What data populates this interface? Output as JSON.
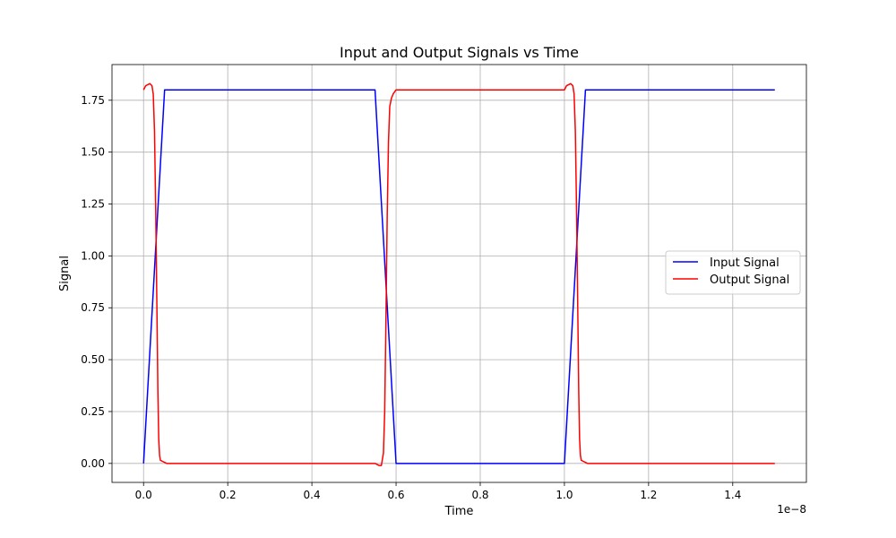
{
  "chart_data": {
    "type": "line",
    "title": "Input and Output Signals vs Time",
    "xlabel": "Time",
    "ylabel": "Signal",
    "x_offset_label": "1e−8",
    "xlim": [
      -0.075,
      1.575
    ],
    "ylim": [
      -0.0915,
      1.922
    ],
    "xticks": [
      0.0,
      0.2,
      0.4,
      0.6,
      0.8,
      1.0,
      1.2,
      1.4
    ],
    "xtick_labels": [
      "0.0",
      "0.2",
      "0.4",
      "0.6",
      "0.8",
      "1.0",
      "1.2",
      "1.4"
    ],
    "yticks": [
      0.0,
      0.25,
      0.5,
      0.75,
      1.0,
      1.25,
      1.5,
      1.75
    ],
    "ytick_labels": [
      "0.00",
      "0.25",
      "0.50",
      "0.75",
      "1.00",
      "1.25",
      "1.50",
      "1.75"
    ],
    "grid": true,
    "legend_position": "center-right",
    "series": [
      {
        "name": "Input Signal",
        "color": "#0000ff",
        "x": [
          0.0,
          0.05,
          0.55,
          0.6,
          1.0,
          1.05,
          1.5
        ],
        "y": [
          0.0,
          1.8,
          1.8,
          0.0,
          0.0,
          1.8,
          1.8
        ]
      },
      {
        "name": "Output Signal",
        "color": "#ff0000",
        "x": [
          0.0,
          0.005,
          0.01,
          0.015,
          0.02,
          0.023,
          0.026,
          0.029,
          0.032,
          0.034,
          0.036,
          0.038,
          0.04,
          0.045,
          0.05,
          0.055,
          0.55,
          0.56,
          0.565,
          0.57,
          0.573,
          0.576,
          0.579,
          0.582,
          0.585,
          0.589,
          0.593,
          0.6,
          1.0,
          1.005,
          1.01,
          1.015,
          1.02,
          1.023,
          1.026,
          1.029,
          1.032,
          1.034,
          1.036,
          1.038,
          1.04,
          1.045,
          1.05,
          1.055,
          1.5
        ],
        "y": [
          1.8,
          1.82,
          1.825,
          1.83,
          1.82,
          1.78,
          1.6,
          1.2,
          0.7,
          0.35,
          0.12,
          0.04,
          0.015,
          0.01,
          0.005,
          0.0,
          0.0,
          -0.01,
          -0.01,
          0.05,
          0.25,
          0.7,
          1.2,
          1.55,
          1.72,
          1.76,
          1.78,
          1.8,
          1.8,
          1.82,
          1.825,
          1.83,
          1.82,
          1.78,
          1.6,
          1.2,
          0.7,
          0.35,
          0.12,
          0.04,
          0.015,
          0.01,
          0.005,
          0.0,
          0.0
        ]
      }
    ]
  }
}
